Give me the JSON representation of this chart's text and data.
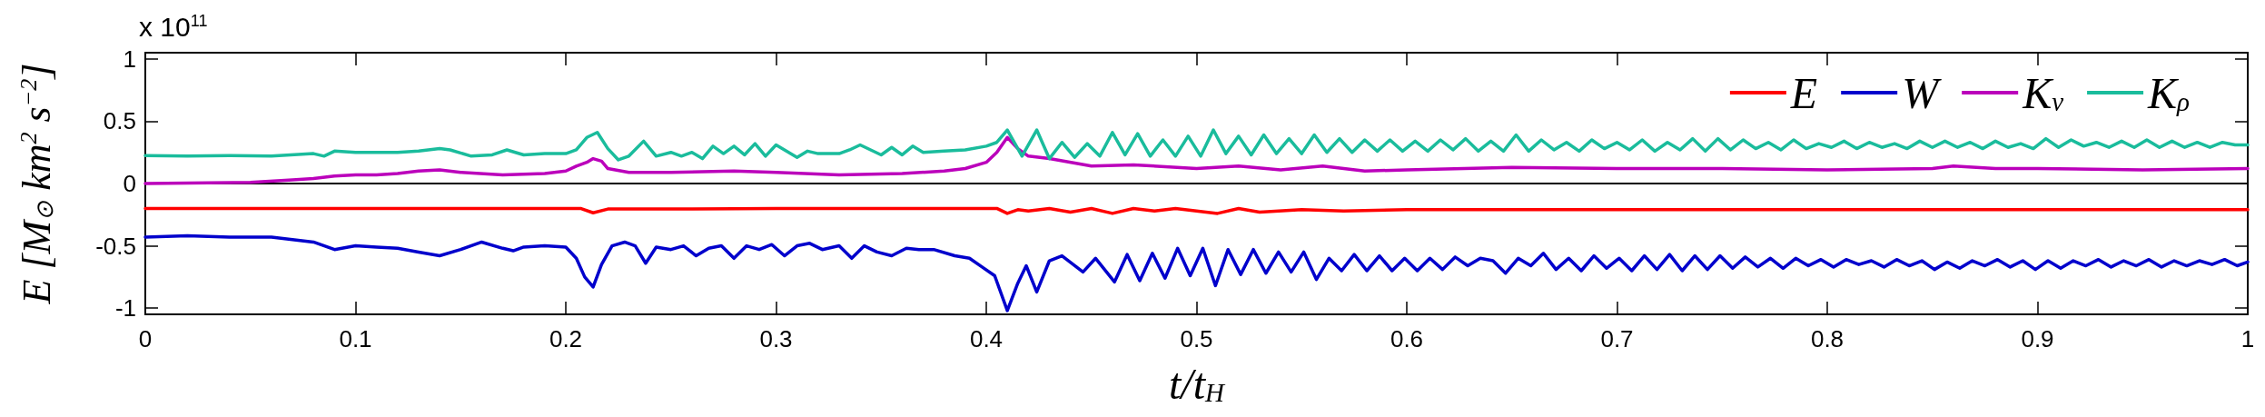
{
  "chart_data": {
    "type": "line",
    "xlabel": "t/t$_{H}$",
    "ylabel": "E [M$_{⊙}$ km$^{2}$ s$^{−2}$]",
    "annotations": [
      "x 10$^{11}$"
    ],
    "xlim": [
      0,
      1
    ],
    "xticks": [
      0,
      0.1,
      0.2,
      0.3,
      0.4,
      0.5,
      0.6,
      0.7,
      0.8,
      0.9,
      1
    ],
    "ylim": [
      -1.05,
      1.05
    ],
    "yticks": [
      -1,
      -0.5,
      0,
      0.5,
      1
    ],
    "grid": false,
    "legend": "top right",
    "marker": "none",
    "line_style": "solid",
    "ref_lines": [
      {
        "axis": "y",
        "value": 0,
        "color": "#000000"
      }
    ],
    "series": [
      {
        "name": "E",
        "color": "#ff0000",
        "x": [
          0,
          0.1,
          0.2,
          0.207,
          0.213,
          0.22,
          0.25,
          0.3,
          0.35,
          0.4,
          0.405,
          0.41,
          0.415,
          0.42,
          0.43,
          0.44,
          0.45,
          0.46,
          0.47,
          0.48,
          0.49,
          0.5,
          0.51,
          0.52,
          0.53,
          0.55,
          0.57,
          0.6,
          0.65,
          0.7,
          0.75,
          0.8,
          0.85,
          0.9,
          0.95,
          1.0
        ],
        "values": [
          -0.2,
          -0.2,
          -0.2,
          -0.2,
          -0.235,
          -0.205,
          -0.205,
          -0.2,
          -0.2,
          -0.2,
          -0.2,
          -0.24,
          -0.21,
          -0.22,
          -0.2,
          -0.23,
          -0.2,
          -0.24,
          -0.2,
          -0.22,
          -0.2,
          -0.22,
          -0.24,
          -0.2,
          -0.23,
          -0.21,
          -0.22,
          -0.21,
          -0.21,
          -0.21,
          -0.21,
          -0.21,
          -0.21,
          -0.21,
          -0.21,
          -0.21
        ]
      },
      {
        "name": "W",
        "color": "#0000cc",
        "x": [
          0,
          0.02,
          0.04,
          0.06,
          0.07,
          0.08,
          0.09,
          0.1,
          0.11,
          0.12,
          0.13,
          0.14,
          0.15,
          0.16,
          0.17,
          0.175,
          0.18,
          0.19,
          0.2,
          0.205,
          0.209,
          0.213,
          0.217,
          0.222,
          0.228,
          0.233,
          0.238,
          0.243,
          0.25,
          0.256,
          0.262,
          0.268,
          0.274,
          0.28,
          0.286,
          0.292,
          0.298,
          0.304,
          0.31,
          0.316,
          0.322,
          0.33,
          0.336,
          0.342,
          0.348,
          0.355,
          0.362,
          0.368,
          0.375,
          0.385,
          0.392,
          0.398,
          0.404,
          0.41,
          0.415,
          0.419,
          0.424,
          0.43,
          0.436,
          0.446,
          0.452,
          0.461,
          0.467,
          0.473,
          0.479,
          0.485,
          0.491,
          0.497,
          0.503,
          0.509,
          0.515,
          0.521,
          0.527,
          0.533,
          0.539,
          0.545,
          0.551,
          0.557,
          0.563,
          0.569,
          0.575,
          0.581,
          0.587,
          0.593,
          0.599,
          0.605,
          0.611,
          0.617,
          0.623,
          0.629,
          0.635,
          0.641,
          0.647,
          0.653,
          0.659,
          0.665,
          0.671,
          0.677,
          0.683,
          0.689,
          0.695,
          0.701,
          0.707,
          0.713,
          0.719,
          0.725,
          0.731,
          0.737,
          0.743,
          0.749,
          0.755,
          0.761,
          0.767,
          0.773,
          0.779,
          0.785,
          0.791,
          0.797,
          0.803,
          0.809,
          0.815,
          0.821,
          0.827,
          0.833,
          0.839,
          0.845,
          0.851,
          0.857,
          0.863,
          0.869,
          0.875,
          0.881,
          0.887,
          0.893,
          0.899,
          0.905,
          0.911,
          0.917,
          0.923,
          0.929,
          0.935,
          0.941,
          0.947,
          0.953,
          0.959,
          0.965,
          0.971,
          0.977,
          0.983,
          0.989,
          0.995,
          1.0
        ],
        "values": [
          -0.43,
          -0.42,
          -0.43,
          -0.43,
          -0.45,
          -0.47,
          -0.53,
          -0.5,
          -0.51,
          -0.52,
          -0.55,
          -0.58,
          -0.53,
          -0.47,
          -0.52,
          -0.54,
          -0.51,
          -0.5,
          -0.51,
          -0.6,
          -0.75,
          -0.83,
          -0.65,
          -0.5,
          -0.47,
          -0.5,
          -0.64,
          -0.51,
          -0.53,
          -0.5,
          -0.58,
          -0.52,
          -0.5,
          -0.6,
          -0.5,
          -0.53,
          -0.49,
          -0.58,
          -0.5,
          -0.48,
          -0.53,
          -0.5,
          -0.6,
          -0.5,
          -0.55,
          -0.58,
          -0.52,
          -0.53,
          -0.53,
          -0.58,
          -0.6,
          -0.67,
          -0.74,
          -1.02,
          -0.8,
          -0.66,
          -0.87,
          -0.62,
          -0.58,
          -0.71,
          -0.6,
          -0.79,
          -0.57,
          -0.78,
          -0.56,
          -0.76,
          -0.52,
          -0.74,
          -0.52,
          -0.82,
          -0.53,
          -0.73,
          -0.53,
          -0.72,
          -0.55,
          -0.71,
          -0.55,
          -0.77,
          -0.6,
          -0.7,
          -0.57,
          -0.7,
          -0.58,
          -0.7,
          -0.6,
          -0.7,
          -0.6,
          -0.69,
          -0.59,
          -0.66,
          -0.6,
          -0.62,
          -0.72,
          -0.6,
          -0.66,
          -0.56,
          -0.69,
          -0.6,
          -0.7,
          -0.58,
          -0.68,
          -0.6,
          -0.7,
          -0.58,
          -0.69,
          -0.57,
          -0.7,
          -0.58,
          -0.69,
          -0.58,
          -0.68,
          -0.59,
          -0.67,
          -0.6,
          -0.68,
          -0.6,
          -0.66,
          -0.61,
          -0.67,
          -0.61,
          -0.65,
          -0.62,
          -0.67,
          -0.61,
          -0.66,
          -0.62,
          -0.69,
          -0.63,
          -0.68,
          -0.62,
          -0.66,
          -0.61,
          -0.67,
          -0.62,
          -0.69,
          -0.62,
          -0.68,
          -0.62,
          -0.66,
          -0.61,
          -0.67,
          -0.62,
          -0.66,
          -0.61,
          -0.67,
          -0.62,
          -0.66,
          -0.62,
          -0.65,
          -0.61,
          -0.66,
          -0.63
        ]
      },
      {
        "name": "K$_{v}$",
        "color": "#bb00bb",
        "x": [
          0,
          0.03,
          0.05,
          0.07,
          0.08,
          0.09,
          0.1,
          0.11,
          0.12,
          0.13,
          0.14,
          0.15,
          0.17,
          0.19,
          0.2,
          0.205,
          0.21,
          0.213,
          0.217,
          0.22,
          0.23,
          0.25,
          0.28,
          0.3,
          0.33,
          0.36,
          0.38,
          0.39,
          0.4,
          0.405,
          0.41,
          0.415,
          0.42,
          0.43,
          0.45,
          0.47,
          0.5,
          0.52,
          0.54,
          0.56,
          0.58,
          0.6,
          0.65,
          0.7,
          0.75,
          0.8,
          0.85,
          0.86,
          0.88,
          0.9,
          0.95,
          1.0
        ],
        "values": [
          0,
          0.005,
          0.01,
          0.03,
          0.04,
          0.06,
          0.07,
          0.07,
          0.08,
          0.1,
          0.11,
          0.09,
          0.07,
          0.08,
          0.1,
          0.14,
          0.17,
          0.2,
          0.18,
          0.12,
          0.09,
          0.09,
          0.1,
          0.09,
          0.07,
          0.08,
          0.1,
          0.12,
          0.17,
          0.25,
          0.37,
          0.28,
          0.22,
          0.2,
          0.14,
          0.15,
          0.12,
          0.14,
          0.11,
          0.14,
          0.1,
          0.11,
          0.13,
          0.12,
          0.12,
          0.11,
          0.12,
          0.14,
          0.12,
          0.12,
          0.11,
          0.12
        ]
      },
      {
        "name": "K$_{ρ}$",
        "color": "#1abc9c",
        "x": [
          0,
          0.02,
          0.04,
          0.06,
          0.08,
          0.085,
          0.09,
          0.1,
          0.11,
          0.12,
          0.13,
          0.14,
          0.145,
          0.155,
          0.165,
          0.172,
          0.18,
          0.19,
          0.2,
          0.205,
          0.21,
          0.215,
          0.22,
          0.225,
          0.23,
          0.237,
          0.243,
          0.25,
          0.255,
          0.26,
          0.265,
          0.27,
          0.275,
          0.28,
          0.285,
          0.29,
          0.295,
          0.3,
          0.31,
          0.315,
          0.32,
          0.33,
          0.335,
          0.34,
          0.35,
          0.355,
          0.36,
          0.365,
          0.37,
          0.38,
          0.39,
          0.4,
          0.405,
          0.41,
          0.417,
          0.424,
          0.43,
          0.436,
          0.442,
          0.448,
          0.454,
          0.46,
          0.466,
          0.472,
          0.478,
          0.484,
          0.49,
          0.496,
          0.502,
          0.508,
          0.514,
          0.52,
          0.526,
          0.532,
          0.538,
          0.544,
          0.55,
          0.556,
          0.562,
          0.568,
          0.574,
          0.58,
          0.586,
          0.592,
          0.598,
          0.604,
          0.61,
          0.616,
          0.622,
          0.628,
          0.634,
          0.64,
          0.646,
          0.652,
          0.658,
          0.664,
          0.67,
          0.676,
          0.682,
          0.688,
          0.694,
          0.7,
          0.706,
          0.712,
          0.718,
          0.724,
          0.73,
          0.736,
          0.742,
          0.748,
          0.754,
          0.76,
          0.766,
          0.772,
          0.778,
          0.784,
          0.79,
          0.796,
          0.802,
          0.808,
          0.814,
          0.82,
          0.826,
          0.832,
          0.838,
          0.844,
          0.85,
          0.856,
          0.862,
          0.868,
          0.874,
          0.88,
          0.886,
          0.892,
          0.898,
          0.904,
          0.91,
          0.916,
          0.922,
          0.928,
          0.934,
          0.94,
          0.946,
          0.952,
          0.958,
          0.964,
          0.97,
          0.976,
          0.982,
          0.988,
          0.994,
          1.0
        ],
        "values": [
          0.225,
          0.22,
          0.225,
          0.22,
          0.24,
          0.22,
          0.26,
          0.25,
          0.25,
          0.25,
          0.26,
          0.28,
          0.27,
          0.22,
          0.23,
          0.27,
          0.23,
          0.24,
          0.24,
          0.27,
          0.37,
          0.41,
          0.28,
          0.19,
          0.22,
          0.34,
          0.22,
          0.25,
          0.22,
          0.25,
          0.2,
          0.3,
          0.24,
          0.3,
          0.23,
          0.32,
          0.22,
          0.31,
          0.21,
          0.26,
          0.24,
          0.24,
          0.27,
          0.31,
          0.23,
          0.29,
          0.23,
          0.3,
          0.25,
          0.26,
          0.27,
          0.3,
          0.33,
          0.43,
          0.22,
          0.43,
          0.2,
          0.33,
          0.21,
          0.32,
          0.22,
          0.41,
          0.23,
          0.4,
          0.22,
          0.35,
          0.22,
          0.38,
          0.22,
          0.43,
          0.24,
          0.38,
          0.23,
          0.39,
          0.24,
          0.36,
          0.24,
          0.39,
          0.25,
          0.36,
          0.25,
          0.35,
          0.26,
          0.35,
          0.26,
          0.34,
          0.26,
          0.35,
          0.27,
          0.36,
          0.26,
          0.34,
          0.26,
          0.39,
          0.26,
          0.35,
          0.27,
          0.33,
          0.26,
          0.35,
          0.28,
          0.33,
          0.27,
          0.35,
          0.26,
          0.33,
          0.27,
          0.36,
          0.26,
          0.36,
          0.27,
          0.35,
          0.28,
          0.33,
          0.27,
          0.35,
          0.28,
          0.32,
          0.29,
          0.34,
          0.28,
          0.33,
          0.29,
          0.32,
          0.28,
          0.34,
          0.29,
          0.34,
          0.29,
          0.33,
          0.28,
          0.34,
          0.29,
          0.32,
          0.28,
          0.36,
          0.29,
          0.35,
          0.3,
          0.33,
          0.29,
          0.34,
          0.29,
          0.35,
          0.29,
          0.34,
          0.29,
          0.33,
          0.29,
          0.33,
          0.31,
          0.31
        ]
      }
    ]
  }
}
